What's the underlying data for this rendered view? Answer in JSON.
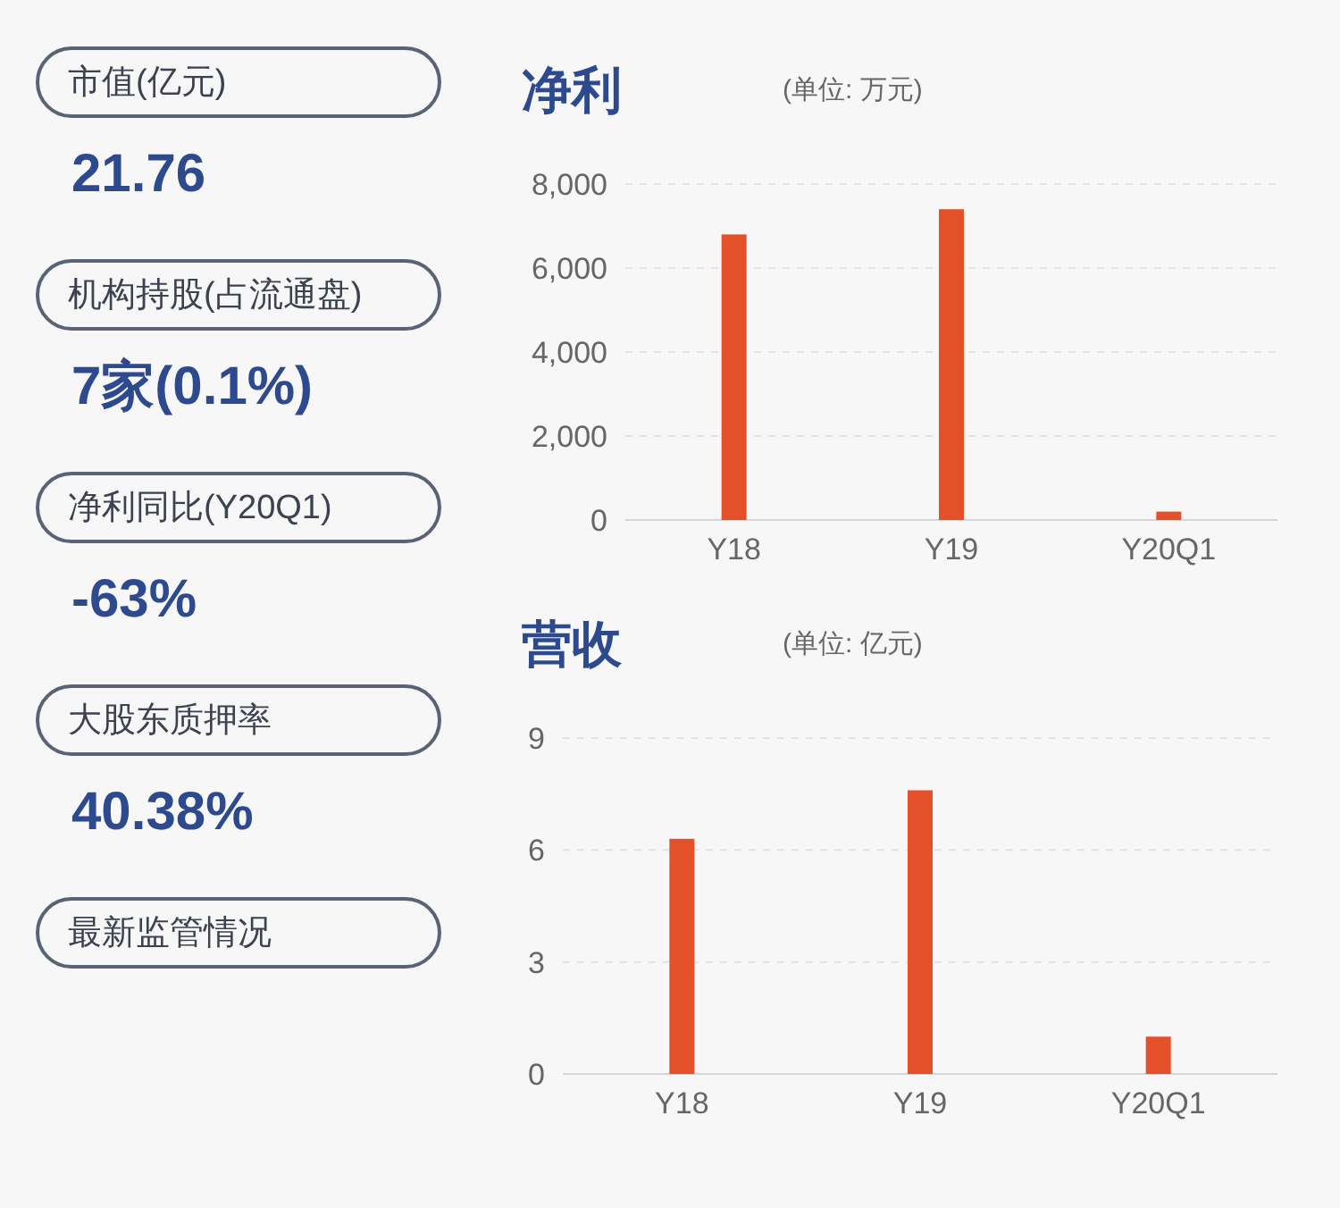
{
  "chart_data": [
    {
      "type": "other",
      "annotations": [
        "市值(亿元)",
        "21.76",
        "机构持股(占流通盘)",
        "7家(0.1%)",
        "净利同比(Y20Q1)",
        "-63%",
        "大股东质押率",
        "40.38%",
        "最新监管情况"
      ]
    },
    {
      "type": "bar",
      "title": "净利",
      "subtitle": "(单位: 万元)",
      "categories": [
        "Y18",
        "Y19",
        "Y20Q1"
      ],
      "series": [
        {
          "color": "#e4502a",
          "values": [
            6800,
            7400,
            200
          ]
        }
      ],
      "ylim": [
        0,
        8000
      ],
      "yticks": [
        {
          "value": 0,
          "label": "0"
        },
        {
          "value": 2000,
          "label": "2,000"
        },
        {
          "value": 4000,
          "label": "4,000"
        },
        {
          "value": 6000,
          "label": "6,000"
        },
        {
          "value": 8000,
          "label": "8,000"
        }
      ],
      "grid": "y"
    },
    {
      "type": "bar",
      "title": "营收",
      "subtitle": "(单位: 亿元)",
      "categories": [
        "Y18",
        "Y19",
        "Y20Q1"
      ],
      "series": [
        {
          "color": "#e4502a",
          "values": [
            6.3,
            7.6,
            1.0
          ]
        }
      ],
      "ylim": [
        0,
        9
      ],
      "yticks": [
        0,
        3,
        6,
        9
      ],
      "grid": "y"
    }
  ]
}
